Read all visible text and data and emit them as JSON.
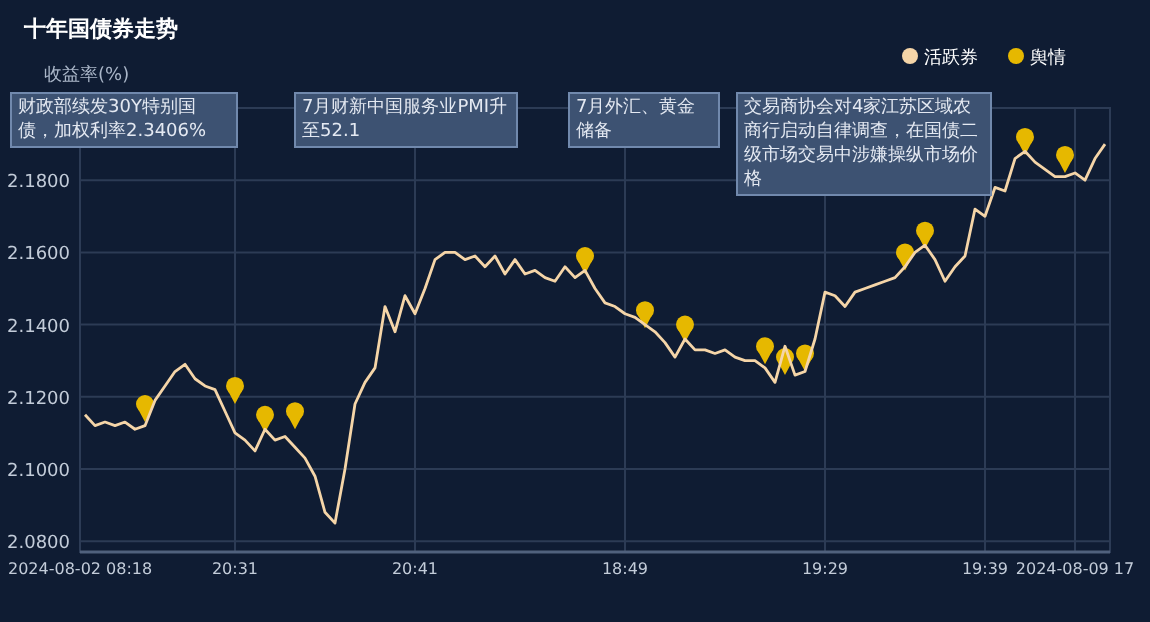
{
  "chart_data": {
    "type": "line",
    "title": "十年国债券走势",
    "ylabel": "收益率(%)",
    "categories": [
      "2024-08-02 08:18",
      null,
      null,
      null,
      null,
      null,
      null,
      null,
      null,
      null,
      null,
      null,
      null,
      null,
      null,
      "20:31",
      null,
      null,
      null,
      null,
      null,
      null,
      null,
      null,
      null,
      null,
      null,
      null,
      null,
      null,
      null,
      null,
      null,
      "20:41",
      null,
      null,
      null,
      null,
      null,
      null,
      null,
      null,
      null,
      null,
      null,
      null,
      null,
      null,
      null,
      null,
      null,
      null,
      null,
      null,
      "18:49",
      null,
      null,
      null,
      null,
      null,
      null,
      null,
      null,
      null,
      null,
      null,
      null,
      null,
      null,
      null,
      null,
      null,
      null,
      null,
      "19:29",
      null,
      null,
      null,
      null,
      null,
      null,
      null,
      null,
      null,
      null,
      null,
      null,
      null,
      null,
      null,
      "19:39",
      null,
      null,
      null,
      null,
      null,
      null,
      null,
      null,
      "2024-08-09 17",
      null,
      null,
      null
    ],
    "series": [
      {
        "name": "活跃券",
        "color": "#f5d5a8",
        "values": [
          2.115,
          2.112,
          2.113,
          2.112,
          2.113,
          2.111,
          2.112,
          2.119,
          2.123,
          2.127,
          2.129,
          2.125,
          2.123,
          2.122,
          2.116,
          2.11,
          2.108,
          2.105,
          2.111,
          2.108,
          2.109,
          2.106,
          2.103,
          2.098,
          2.088,
          2.085,
          2.1,
          2.118,
          2.124,
          2.128,
          2.145,
          2.138,
          2.148,
          2.143,
          2.15,
          2.158,
          2.16,
          2.16,
          2.158,
          2.159,
          2.156,
          2.159,
          2.154,
          2.158,
          2.154,
          2.155,
          2.153,
          2.152,
          2.156,
          2.153,
          2.155,
          2.15,
          2.146,
          2.145,
          2.143,
          2.142,
          2.14,
          2.138,
          2.135,
          2.131,
          2.136,
          2.133,
          2.133,
          2.132,
          2.133,
          2.131,
          2.13,
          2.13,
          2.128,
          2.124,
          2.134,
          2.126,
          2.127,
          2.136,
          2.149,
          2.148,
          2.145,
          2.149,
          2.15,
          2.151,
          2.152,
          2.153,
          2.156,
          2.16,
          2.162,
          2.158,
          2.152,
          2.156,
          2.159,
          2.172,
          2.17,
          2.178,
          2.177,
          2.186,
          2.188,
          2.185,
          2.183,
          2.181,
          2.181,
          2.182,
          2.18,
          2.186,
          2.19
        ]
      },
      {
        "name": "舆情",
        "type": "scatter",
        "marker": "circle",
        "color": "#e6b800",
        "values": [
          null,
          null,
          null,
          null,
          null,
          null,
          2.118,
          null,
          null,
          null,
          null,
          null,
          null,
          null,
          null,
          2.123,
          null,
          null,
          2.115,
          null,
          null,
          2.116,
          null,
          null,
          null,
          null,
          null,
          null,
          null,
          null,
          null,
          null,
          null,
          null,
          null,
          null,
          null,
          null,
          null,
          null,
          null,
          null,
          null,
          null,
          null,
          null,
          null,
          null,
          null,
          null,
          2.159,
          null,
          null,
          null,
          null,
          null,
          2.144,
          null,
          null,
          null,
          2.14,
          null,
          null,
          null,
          null,
          null,
          null,
          null,
          2.134,
          null,
          2.131,
          null,
          2.132,
          null,
          null,
          null,
          null,
          null,
          null,
          null,
          null,
          null,
          2.16,
          null,
          2.166,
          null,
          null,
          null,
          null,
          null,
          null,
          null,
          null,
          null,
          2.192,
          null,
          null,
          null,
          2.187,
          null,
          null,
          null,
          null
        ]
      }
    ],
    "ylim": [
      2.077,
      2.2
    ],
    "yticks": [
      {
        "value": 2.08,
        "label": "2.0800"
      },
      {
        "value": 2.1,
        "label": "2.1000"
      },
      {
        "value": 2.12,
        "label": "2.1200"
      },
      {
        "value": 2.14,
        "label": "2.1400"
      },
      {
        "value": 2.16,
        "label": "2.1600"
      },
      {
        "value": 2.18,
        "label": "2.1800"
      }
    ],
    "grid": true,
    "legend": "top right",
    "annotations": [
      "财政部续发30Y特别国债，加权利率2.3406%",
      "7月财新中国服务业PMI升至52.1",
      "7月外汇、黄金储备",
      "交易商协会对4家江苏区域农商行启动自律调查，在国债二级市场交易中涉嫌操纵市场价格"
    ]
  }
}
